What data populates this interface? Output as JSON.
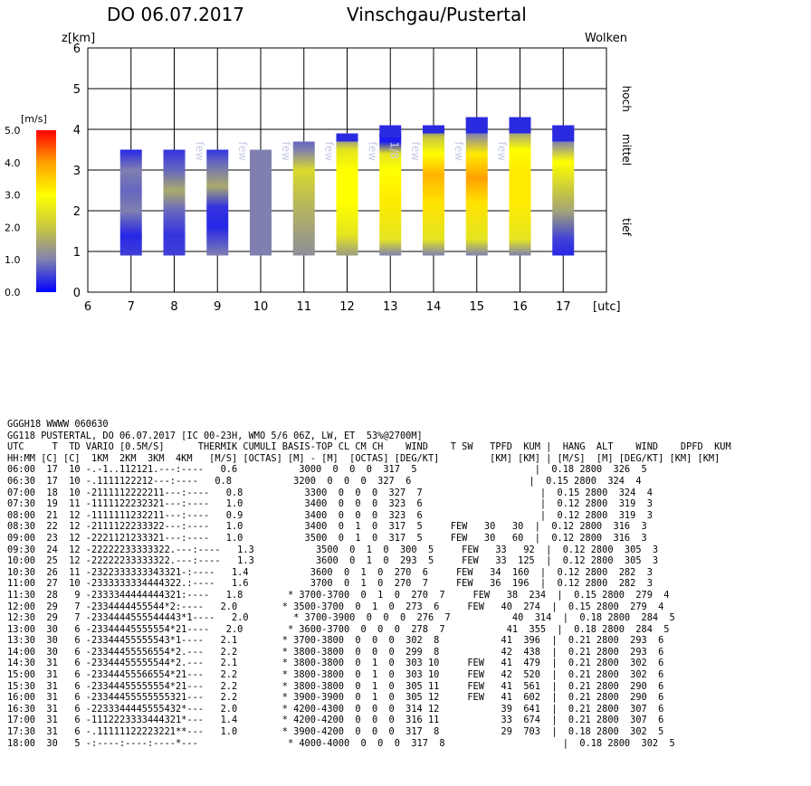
{
  "header": {
    "date": "DO 06.07.2017",
    "region": "Vinschgau/Pustertal"
  },
  "chart_data": {
    "type": "bar",
    "title": "",
    "xlabel": "[utc]",
    "ylabel": "z[km]",
    "right_label": "Wolken",
    "cloud_levels": [
      "hoch",
      "mittel",
      "tief"
    ],
    "x_ticks": [
      "6",
      "7",
      "8",
      "9",
      "10",
      "11",
      "12",
      "13",
      "14",
      "15",
      "16",
      "17"
    ],
    "y_ticks": [
      "0",
      "1",
      "2",
      "3",
      "4",
      "5",
      "6"
    ],
    "xlim": [
      6,
      18
    ],
    "ylim": [
      0,
      6
    ],
    "grid": true,
    "colorbar": {
      "unit": "[m/s]",
      "ticks": [
        "0.0",
        "1.0",
        "2.0",
        "3.0",
        "4.0",
        "5.0"
      ],
      "range": [
        0,
        5
      ],
      "colors": [
        "#0000ff",
        "#8080b0",
        "#c8c840",
        "#ffff00",
        "#ffa000",
        "#ff0000"
      ]
    },
    "thermal_columns": [
      {
        "time": 7,
        "base": 0.9,
        "top": 3.5,
        "profile": [
          [
            0.9,
            0.5
          ],
          [
            1.4,
            0.3
          ],
          [
            2.0,
            1.0
          ],
          [
            2.5,
            0.8
          ],
          [
            3.0,
            1.0
          ],
          [
            3.5,
            0.3
          ]
        ]
      },
      {
        "time": 8,
        "base": 0.9,
        "top": 3.5,
        "profile": [
          [
            0.9,
            0.5
          ],
          [
            1.4,
            0.4
          ],
          [
            2.0,
            0.8
          ],
          [
            2.5,
            1.6
          ],
          [
            3.0,
            0.8
          ],
          [
            3.5,
            0.4
          ]
        ]
      },
      {
        "time": 9,
        "base": 0.9,
        "top": 3.5,
        "profile": [
          [
            0.9,
            1.0
          ],
          [
            1.6,
            0.3
          ],
          [
            2.1,
            0.4
          ],
          [
            2.6,
            1.6
          ],
          [
            3.2,
            0.8
          ],
          [
            3.5,
            0.4
          ]
        ]
      },
      {
        "time": 10,
        "base": 0.9,
        "top": 3.5,
        "profile": [
          [
            0.9,
            1.0
          ],
          [
            2.0,
            1.0
          ],
          [
            3.0,
            1.0
          ],
          [
            3.5,
            1.0
          ]
        ]
      },
      {
        "time": 11,
        "base": 0.9,
        "top": 3.7,
        "profile": [
          [
            0.9,
            1.2
          ],
          [
            2.0,
            1.7
          ],
          [
            3.0,
            2.3
          ],
          [
            3.5,
            1.0
          ],
          [
            3.7,
            0.8
          ]
        ]
      },
      {
        "time": 12,
        "base": 0.9,
        "top": 3.8,
        "profile": [
          [
            0.9,
            1.4
          ],
          [
            1.4,
            2.5
          ],
          [
            2.2,
            3.0
          ],
          [
            3.0,
            3.0
          ],
          [
            3.5,
            2.5
          ],
          [
            3.8,
            1.0
          ]
        ]
      },
      {
        "time": 13,
        "base": 0.9,
        "top": 3.9,
        "profile": [
          [
            0.9,
            1.0
          ],
          [
            1.3,
            2.5
          ],
          [
            2.3,
            3.2
          ],
          [
            3.0,
            3.0
          ],
          [
            3.4,
            2.5
          ],
          [
            3.7,
            0.2
          ]
        ]
      },
      {
        "time": 14,
        "base": 0.9,
        "top": 4.1,
        "profile": [
          [
            0.9,
            1.0
          ],
          [
            1.3,
            2.5
          ],
          [
            2.2,
            3.3
          ],
          [
            2.9,
            3.8
          ],
          [
            3.4,
            3.0
          ],
          [
            3.8,
            2.0
          ],
          [
            4.1,
            0.5
          ]
        ]
      },
      {
        "time": 15,
        "base": 0.9,
        "top": 4.3,
        "profile": [
          [
            0.9,
            1.0
          ],
          [
            1.3,
            2.5
          ],
          [
            2.2,
            3.3
          ],
          [
            2.8,
            4.0
          ],
          [
            3.4,
            3.2
          ],
          [
            3.9,
            1.0
          ],
          [
            4.3,
            0.2
          ]
        ]
      },
      {
        "time": 16,
        "base": 0.9,
        "top": 4.3,
        "profile": [
          [
            0.9,
            1.0
          ],
          [
            1.3,
            2.5
          ],
          [
            2.2,
            3.2
          ],
          [
            3.0,
            3.2
          ],
          [
            3.5,
            3.0
          ],
          [
            4.0,
            1.2
          ],
          [
            4.3,
            0.2
          ]
        ]
      },
      {
        "time": 17,
        "base": 0.9,
        "top": 4.1,
        "profile": [
          [
            0.9,
            0.3
          ],
          [
            1.3,
            0.5
          ],
          [
            2.0,
            1.5
          ],
          [
            2.5,
            2.0
          ],
          [
            3.2,
            3.0
          ],
          [
            3.7,
            1.0
          ],
          [
            4.1,
            0.2
          ]
        ]
      }
    ],
    "cloud_cap_markers": [
      {
        "time": 12,
        "bottom": 3.7,
        "top": 3.9
      },
      {
        "time": 13,
        "bottom": 3.8,
        "top": 4.1
      },
      {
        "time": 14,
        "bottom": 3.9,
        "top": 4.1
      },
      {
        "time": 15,
        "bottom": 3.9,
        "top": 4.3
      },
      {
        "time": 16,
        "bottom": 3.9,
        "top": 4.3
      },
      {
        "time": 17,
        "bottom": 3.7,
        "top": 4.1
      }
    ],
    "cloud_labels": [
      {
        "time": 8.5,
        "text": "few"
      },
      {
        "time": 9.5,
        "text": "few"
      },
      {
        "time": 10.5,
        "text": "few"
      },
      {
        "time": 11.5,
        "text": "few"
      },
      {
        "time": 12.5,
        "text": "few"
      },
      {
        "time": 13.0,
        "text": "1/8"
      },
      {
        "time": 13.5,
        "text": "few"
      },
      {
        "time": 14.5,
        "text": "few"
      },
      {
        "time": 15.5,
        "text": "few"
      }
    ]
  },
  "report": {
    "lines": [
      "GGGH18 WWWW 060630",
      "GG118 PUSTERTAL, DO 06.07.2017 [IC 00-23H, WMO 5/6 06Z, LW, ET  53%@2700M]",
      "UTC     T  TD VARIO [0.5M/S]      THERMIK CUMULI BASIS-TOP CL CM CH    WIND    T SW   TPFD  KUM |  HANG  ALT    WIND    DPFD  KUM",
      "HH:MM [C] [C]  1KM  2KM  3KM  4KM   [M/S] [OCTAS] [M] - [M]  [OCTAS] [DEG/KT]         [KM] [KM] | [M/S]  [M] [DEG/KT] [KM] [KM]",
      "06:00  17  10 -.-1..112121.---:----   0.6           3000  0  0  0  317  5                     |  0.18 2800  326  5",
      "06:30  17  10 -.1111122212---:----   0.8           3200  0  0  0  327  6                     |  0.15 2800  324  4",
      "07:00  18  10 -2111112222211---:----   0.8           3300  0  0  0  327  7                     |  0.15 2800  324  4",
      "07:30  19  11 -1111122232321---:----   1.0           3400  0  0  0  323  6                     |  0.12 2800  319  3",
      "08:00  21  12 -1111111232211---:----   0.9           3400  0  0  0  323  6                     |  0.12 2800  319  3",
      "08:30  22  12 -2111122233322---:----   1.0           3400  0  1  0  317  5     FEW   30   30  |  0.12 2800  316  3",
      "09:00  23  12 -2221121233321---:----   1.0           3500  0  1  0  317  5     FEW   30   60  |  0.12 2800  316  3",
      "09:30  24  12 -22222233333322.---:----   1.3           3500  0  1  0  300  5     FEW   33   92  |  0.12 2800  305  3",
      "10:00  25  12 -22222233333322.---:----   1.3           3600  0  1  0  293  5     FEW   33  125  |  0.12 2800  305  3",
      "10:30  26  11 -2322333333343321-:----   1.4           3600  0  1  0  270  6     FEW   34  160  |  0.12 2800  282  3",
      "11:00  27  10 -2333333334444322.:----   1.6           3700  0  1  0  270  7     FEW   36  196  |  0.12 2800  282  3",
      "11:30  28   9 -2333344444444321:----   1.8        * 3700-3700  0  1  0  270  7     FEW   38  234  |  0.15 2800  279  4",
      "12:00  29   7 -2334444455544*2:----   2.0        * 3500-3700  0  1  0  273  6     FEW   40  274  |  0.15 2800  279  4",
      "12:30  29   7 -2334444555544443*1----   2.0        * 3700-3900  0  0  0  276  7           40  314  |  0.18 2800  284  5",
      "13:00  30   6 -23344445555554*21----   2.0        * 3600-3700  0  0  0  278  7           41  355  |  0.18 2800  284  5",
      "13:30  30   6 -23344455555543*1----   2.1        * 3700-3800  0  0  0  302  8           41  396  |  0.21 2800  293  6",
      "14:00  30   6 -23344455556554*2.---   2.2        * 3800-3800  0  0  0  299  8           42  438  |  0.21 2800  293  6",
      "14:30  31   6 -23344455555544*2.---   2.1        * 3800-3800  0  1  0  303 10     FEW   41  479  |  0.21 2800  302  6",
      "15:00  31   6 -23344455566554*21---   2.2        * 3800-3800  0  1  0  303 10     FEW   42  520  |  0.21 2800  302  6",
      "15:30  31   6 -23344455555554*21---   2.2        * 3800-3800  0  1  0  305 11     FEW   41  561  |  0.21 2800  290  6",
      "16:00  31   6 -23344455555555321---   2.2        * 3900-3900  0  1  0  305 12     FEW   41  602  |  0.21 2800  290  6",
      "16:30  31   6 -2233344445555432*---   2.0        * 4200-4300  0  0  0  314 12           39  641  |  0.21 2800  307  6",
      "17:00  31   6 -1112223333444321*---   1.4        * 4200-4200  0  0  0  316 11           33  674  |  0.21 2800  307  6",
      "17:30  31   6 -.11111122223221**---   1.0        * 3900-4200  0  0  0  317  8           29  703  |  0.18 2800  302  5",
      "18:00  30   5 -:----:----:----*---                * 4000-4000  0  0  0  317  8                     |  0.18 2800  302  5"
    ]
  }
}
